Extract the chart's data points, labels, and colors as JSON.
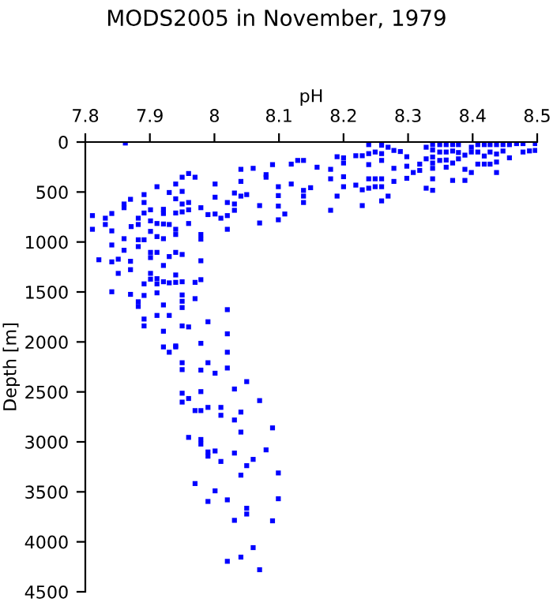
{
  "chart_data": {
    "type": "scatter",
    "title": "MODS2005 in November, 1979",
    "xlabel": "pH",
    "ylabel": "Depth [m]",
    "x": [
      7.862,
      7.811,
      7.811,
      7.821,
      7.831,
      7.831,
      7.841,
      7.841,
      7.841,
      7.841,
      7.841,
      7.851,
      7.851,
      7.86,
      7.86,
      7.86,
      7.86,
      7.87,
      7.87,
      7.87,
      7.87,
      7.871,
      7.882,
      7.882,
      7.882,
      7.882,
      7.882,
      7.882,
      7.891,
      7.891,
      7.891,
      7.891,
      7.891,
      7.891,
      7.891,
      7.891,
      7.901,
      7.901,
      7.901,
      7.901,
      7.901,
      7.901,
      7.901,
      7.911,
      7.911,
      7.911,
      7.911,
      7.911,
      7.911,
      7.911,
      7.911,
      7.921,
      7.921,
      7.921,
      7.921,
      7.921,
      7.921,
      7.921,
      7.921,
      7.93,
      7.93,
      7.93,
      7.93,
      7.93,
      7.94,
      7.94,
      7.94,
      7.94,
      7.94,
      7.94,
      7.94,
      7.94,
      7.94,
      7.95,
      7.95,
      7.95,
      7.95,
      7.95,
      7.95,
      7.95,
      7.95,
      7.95,
      7.95,
      7.96,
      7.96,
      7.96,
      7.96,
      7.96,
      7.97,
      7.97,
      7.97,
      7.979,
      7.979,
      7.979,
      7.979,
      7.979,
      7.99,
      7.99,
      8.001,
      8.001,
      8.001,
      8.01,
      8.02,
      8.02,
      8.02,
      8.02,
      8.02,
      8.031,
      8.031,
      8.031,
      8.041,
      8.041,
      8.041,
      8.05,
      8.06,
      8.07,
      8.07,
      8.08,
      8.08,
      8.09,
      8.099,
      8.099,
      8.099,
      8.099,
      8.109,
      8.119,
      8.119,
      8.129,
      8.138,
      8.138,
      8.138,
      8.138,
      8.149,
      8.159,
      8.18,
      8.18,
      8.19,
      8.19,
      8.18,
      8.2,
      8.2,
      8.2,
      8.2,
      8.219,
      8.219,
      8.229,
      8.229,
      8.229,
      8.239,
      8.239,
      8.239,
      8.239,
      8.239,
      8.249,
      8.249,
      8.249,
      8.259,
      8.259,
      8.259,
      8.259,
      8.259,
      8.259,
      8.269,
      8.269,
      8.278,
      8.278,
      8.278,
      8.288,
      8.298,
      8.298,
      8.298,
      8.308,
      8.318,
      8.318,
      8.328,
      8.328,
      8.328,
      8.338,
      8.338,
      8.338,
      8.338,
      8.338,
      8.338,
      8.338,
      8.349,
      8.349,
      8.349,
      8.359,
      8.359,
      8.359,
      8.359,
      8.369,
      8.369,
      8.369,
      8.369,
      8.378,
      8.378,
      8.378,
      8.388,
      8.388,
      8.388,
      8.398,
      8.398,
      8.398,
      8.408,
      8.408,
      8.408,
      8.418,
      8.418,
      8.418,
      8.427,
      8.427,
      8.427,
      8.437,
      8.437,
      8.437,
      8.437,
      8.447,
      8.447,
      8.457,
      8.457,
      8.468,
      8.478,
      8.478,
      8.488,
      8.497,
      8.497,
      7.921,
      7.93,
      7.94,
      7.95,
      7.95,
      7.979,
      7.979,
      7.99,
      8.001,
      8.02,
      8.02,
      7.95,
      7.96,
      7.95,
      7.979,
      7.97,
      7.979,
      7.99,
      8.01,
      8.01,
      8.031,
      8.041,
      8.05,
      8.07,
      8.031,
      8.041,
      8.09,
      7.96,
      7.979,
      7.979,
      7.99,
      7.99,
      8.001,
      8.01,
      8.031,
      8.08,
      8.06,
      8.05,
      8.041,
      8.099,
      7.97,
      8.001,
      7.99,
      8.02,
      8.05,
      8.05,
      8.099,
      8.031,
      8.09,
      8.06,
      8.041,
      8.02,
      8.07
    ],
    "values": [
      10,
      736,
      873,
      1178,
      762,
      825,
      715,
      889,
      1030,
      1199,
      1498,
      1172,
      1314,
      620,
      657,
      967,
      1083,
      573,
      1193,
      1277,
      1524,
      846,
      762,
      825,
      978,
      1046,
      1598,
      1645,
      526,
      605,
      710,
      978,
      1419,
      1535,
      1771,
      1840,
      678,
      789,
      894,
      1104,
      1156,
      1314,
      1372,
      447,
      815,
      946,
      1104,
      1367,
      1419,
      1509,
      1735,
      673,
      715,
      820,
      967,
      1235,
      1398,
      1630,
      1893,
      505,
      825,
      1146,
      1409,
      1735,
      420,
      568,
      710,
      873,
      925,
      1104,
      1330,
      1404,
      2040,
      352,
      494,
      620,
      699,
      1125,
      1398,
      1530,
      1593,
      1656,
      1840,
      315,
      605,
      678,
      815,
      1850,
      352,
      1404,
      1567,
      657,
      925,
      972,
      1188,
      1377,
      1798,
      726,
      420,
      552,
      720,
      762,
      605,
      736,
      873,
      1677,
      1919,
      510,
      620,
      683,
      273,
      394,
      541,
      526,
      263,
      636,
      810,
      326,
      352,
      226,
      447,
      536,
      641,
      778,
      720,
      221,
      420,
      184,
      184,
      484,
      541,
      605,
      457,
      252,
      273,
      368,
      147,
      541,
      683,
      158,
      210,
      347,
      447,
      137,
      431,
      137,
      478,
      636,
      26,
      116,
      226,
      368,
      462,
      100,
      368,
      447,
      32,
      116,
      184,
      368,
      447,
      589,
      52,
      541,
      84,
      263,
      394,
      95,
      147,
      242,
      363,
      305,
      221,
      284,
      52,
      168,
      462,
      26,
      80,
      150,
      210,
      263,
      368,
      483,
      26,
      100,
      184,
      26,
      100,
      180,
      252,
      26,
      90,
      210,
      384,
      26,
      105,
      168,
      131,
      273,
      384,
      52,
      100,
      305,
      26,
      100,
      221,
      26,
      140,
      221,
      26,
      100,
      221,
      26,
      120,
      200,
      305,
      26,
      90,
      26,
      158,
      16,
      16,
      100,
      89,
      16,
      84,
      2050,
      2103,
      2050,
      2208,
      2277,
      2014,
      2282,
      2208,
      2313,
      2103,
      2261,
      2513,
      2566,
      2602,
      2497,
      2687,
      2687,
      2655,
      2655,
      2734,
      2471,
      2702,
      2397,
      2587,
      2781,
      2902,
      2860,
      2955,
      2976,
      3022,
      3101,
      3143,
      3091,
      3196,
      3112,
      3080,
      3175,
      3238,
      3333,
      3311,
      3417,
      3490,
      3596,
      3580,
      3664,
      3722,
      3569,
      3785,
      3790,
      4058,
      4153,
      4195,
      4279
    ],
    "color": "#0000ff",
    "marker": "square",
    "grid": false,
    "legend": false,
    "xlim": [
      7.8,
      8.5
    ],
    "xticks": [
      7.8,
      7.9,
      8,
      8.1,
      8.2,
      8.3,
      8.4,
      8.5
    ],
    "ylim": [
      4500,
      0
    ],
    "yticks": [
      0,
      500,
      1000,
      1500,
      2000,
      2500,
      3000,
      3500,
      4000,
      4500
    ]
  }
}
